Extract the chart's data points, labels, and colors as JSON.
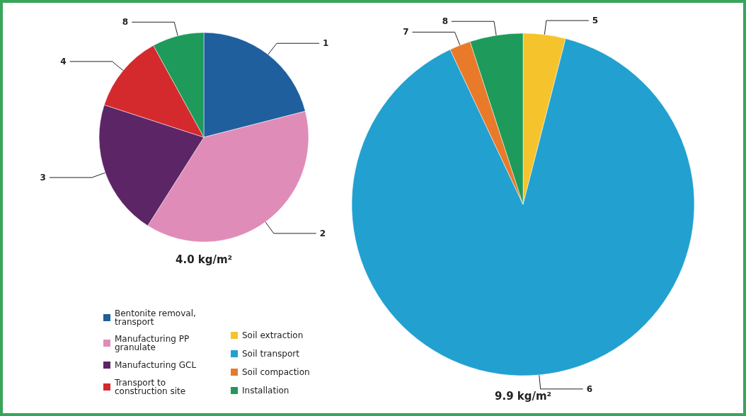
{
  "chart_data": {
    "type": "pie",
    "categories": [
      "Bentonite removal, transport",
      "Manufacturing PP granulate",
      "Manufacturing GCL",
      "Transport to construction site",
      "Soil extraction",
      "Soil transport",
      "Soil compaction",
      "Installation"
    ],
    "annotations": [
      "1",
      "2",
      "3",
      "4",
      "5",
      "6",
      "7",
      "8"
    ],
    "colors": [
      "#1f5f9e",
      "#e08cb8",
      "#5c2566",
      "#d42a2e",
      "#f5c42c",
      "#22a0d0",
      "#e87a2a",
      "#1e9a5a"
    ],
    "legend": "bottom left",
    "series": [
      {
        "name": "4.0 kg/m²",
        "values": [
          21,
          38,
          21,
          12,
          null,
          null,
          null,
          8
        ]
      },
      {
        "name": "9.9 kg/m²",
        "values": [
          null,
          null,
          null,
          null,
          4,
          89,
          2,
          5
        ]
      }
    ]
  }
}
